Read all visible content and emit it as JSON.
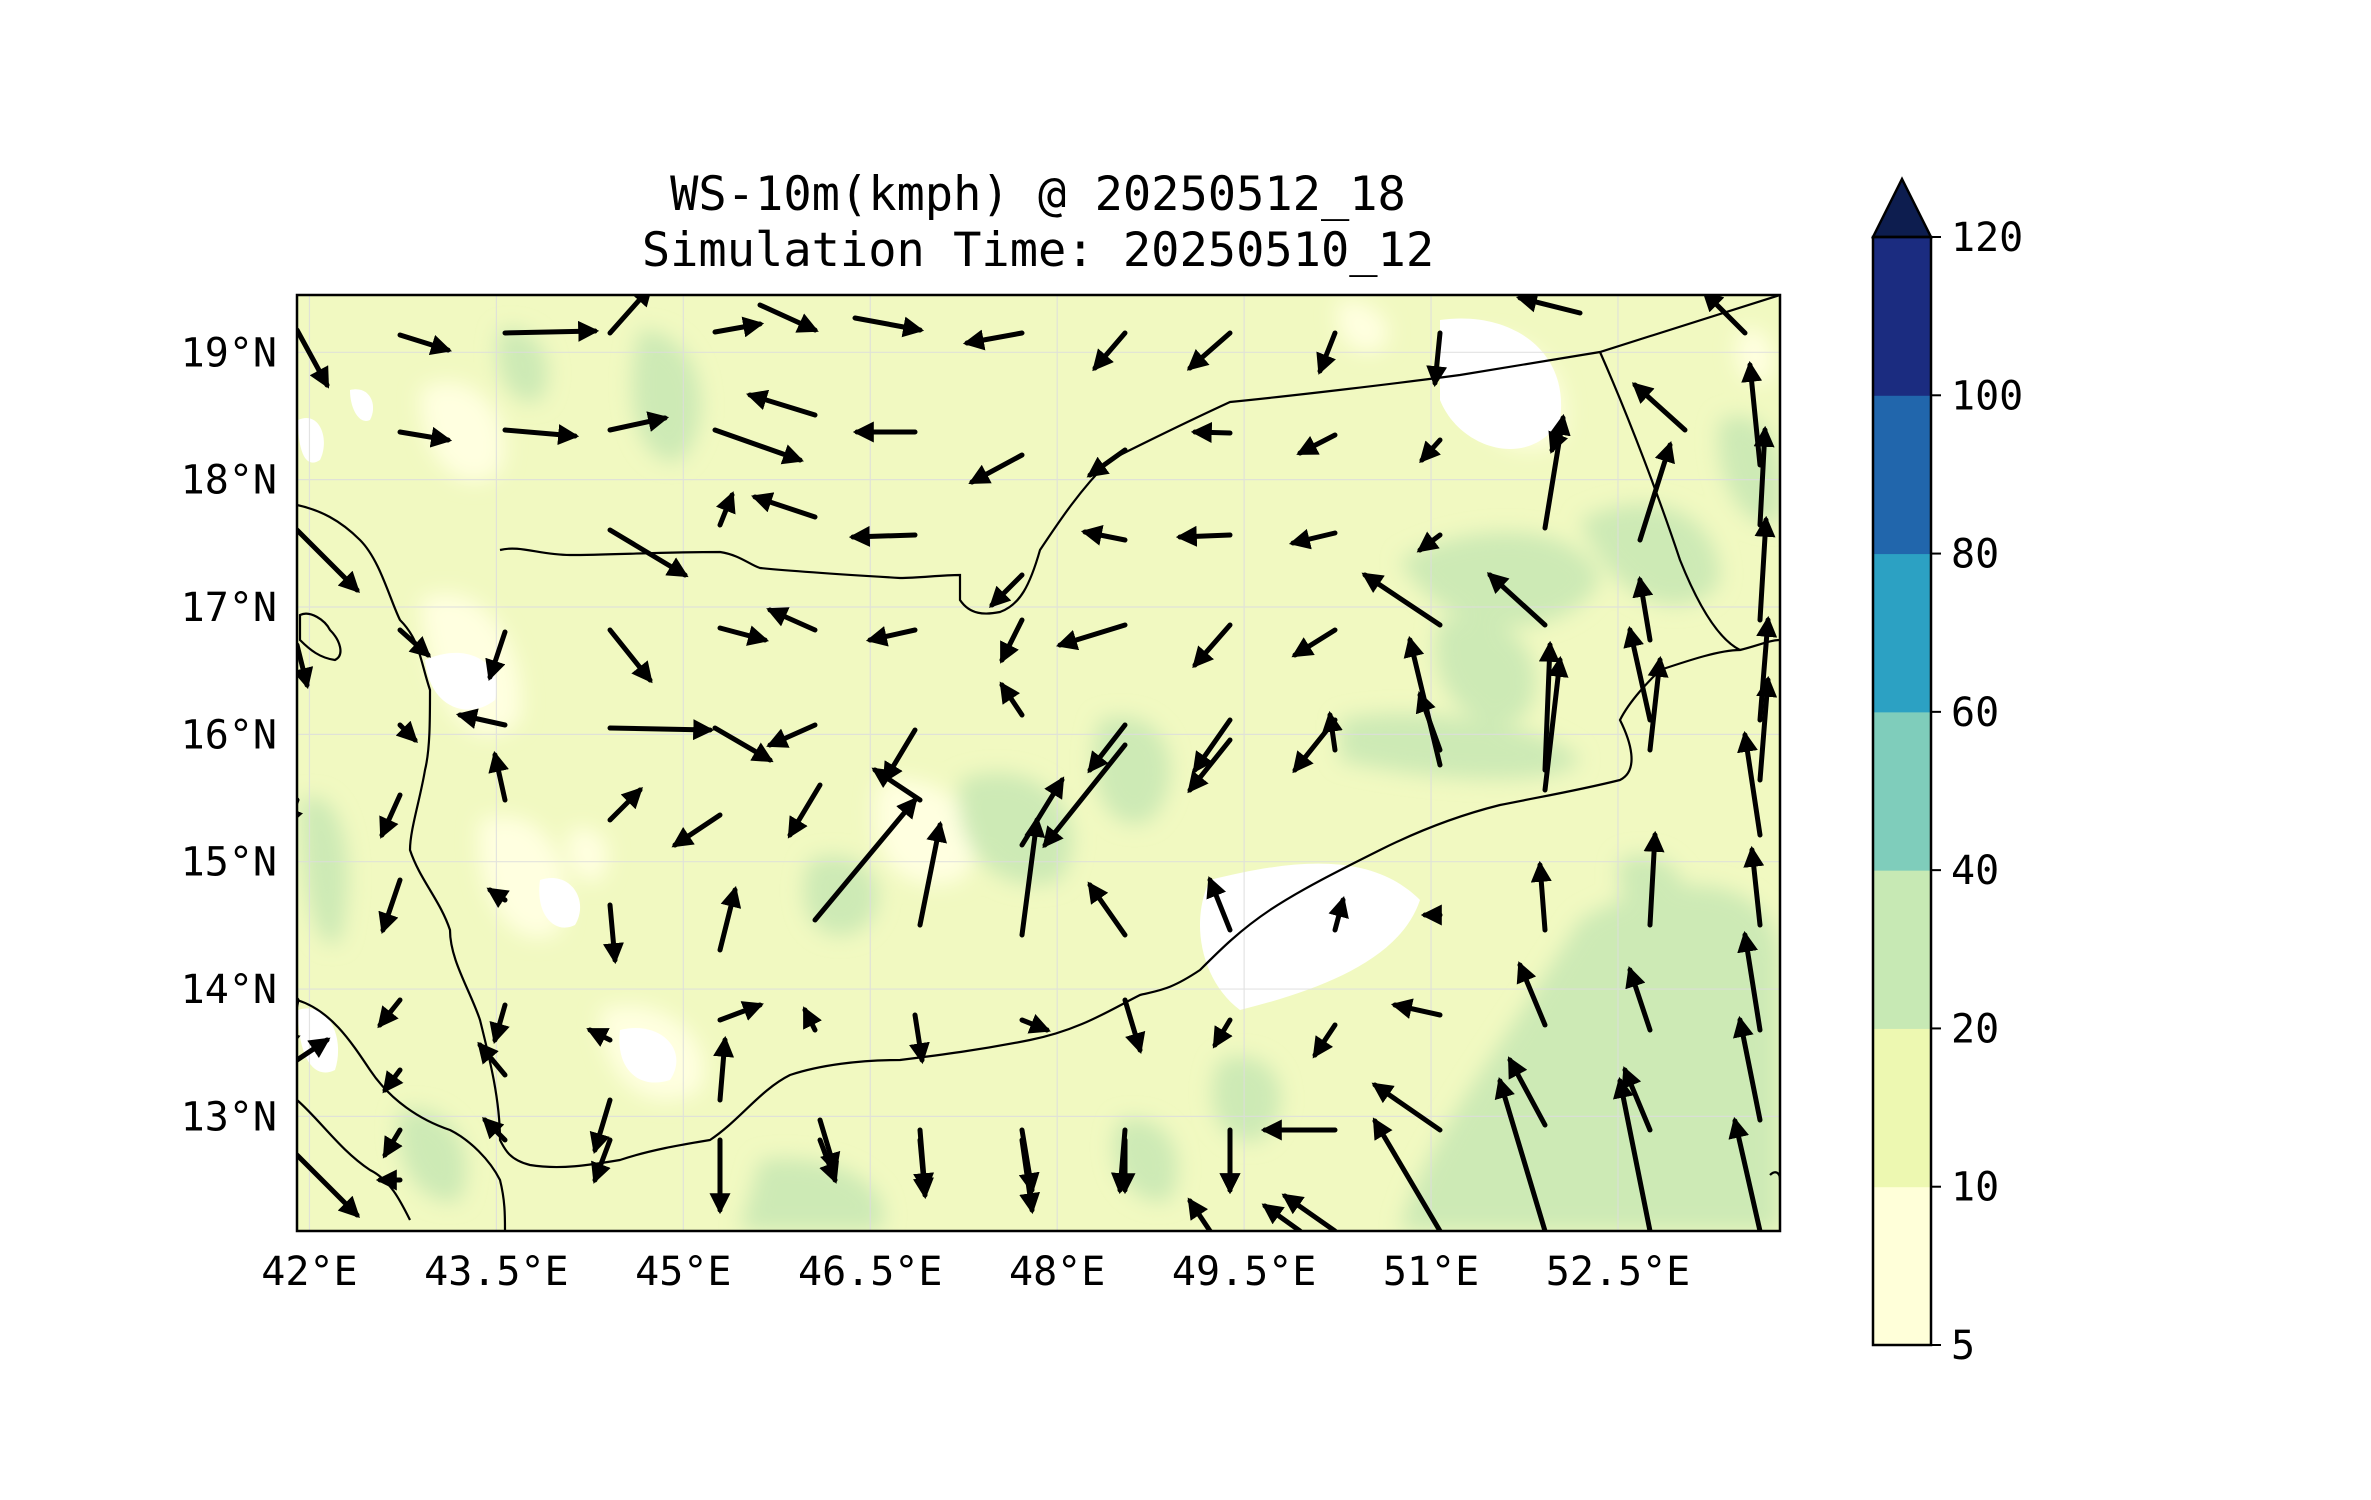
{
  "title": {
    "line1": "WS-10m(kmph) @ 20250512_18",
    "line2": "Simulation Time: 20250510_12"
  },
  "map": {
    "lon_range": [
      41.9,
      53.8
    ],
    "lat_range": [
      12.1,
      19.45
    ],
    "x_ticks": [
      "42°E",
      "43.5°E",
      "45°E",
      "46.5°E",
      "48°E",
      "49.5°E",
      "51°E",
      "52.5°E"
    ],
    "x_tick_values": [
      42,
      43.5,
      45,
      46.5,
      48,
      49.5,
      51,
      52.5
    ],
    "y_ticks": [
      "19°N",
      "18°N",
      "17°N",
      "16°N",
      "15°N",
      "14°N",
      "13°N"
    ],
    "y_tick_values": [
      19,
      18,
      17,
      16,
      15,
      14,
      13
    ],
    "gridlines": true,
    "land_fill_color": "#f1f9c1",
    "arrow_color": "#000000"
  },
  "colorbar": {
    "levels": [
      "5",
      "10",
      "20",
      "40",
      "60",
      "80",
      "100",
      "120"
    ],
    "colors": [
      "#ffffd9",
      "#edf8b1",
      "#c7e9b4",
      "#7fcdbb",
      "#2ca1c3",
      "#2166ac",
      "#1b2c80"
    ],
    "extend_color": "#0d1d4f",
    "extend": "max"
  }
}
